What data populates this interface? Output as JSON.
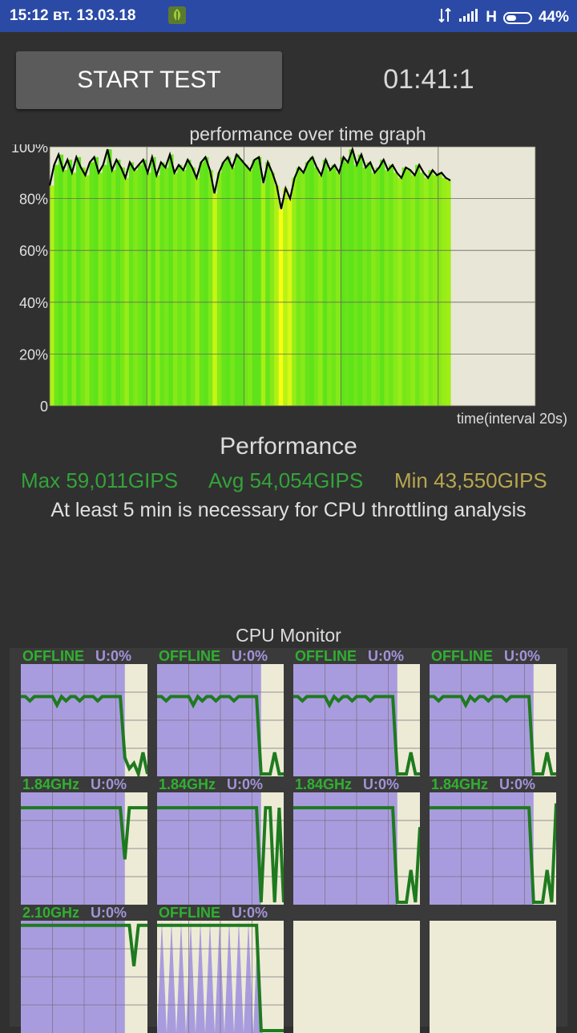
{
  "status_bar": {
    "time_date": "15:12 вт. 13.03.18",
    "network": "H",
    "battery": "44%",
    "battery_level": 0.44,
    "icons": [
      "leaf-icon",
      "data-arrows-icon",
      "signal-icon",
      "battery-icon"
    ]
  },
  "controls": {
    "start_label": "START TEST",
    "timer": "01:41:1"
  },
  "graph": {
    "title": "performance over time graph",
    "x_label": "time(interval 20s)",
    "y_ticks": [
      "100%",
      "80%",
      "60%",
      "40%",
      "20%",
      "0"
    ],
    "colors": {
      "bg": "#e8e6d6",
      "high": "#5fe31a",
      "low": "#ffff10",
      "line": "#000000"
    }
  },
  "chart_data": {
    "type": "line",
    "ylabel": "",
    "xlabel": "time(interval 20s)",
    "ylim": [
      0,
      100
    ],
    "x_interval_s": 20,
    "x_range_s": [
      0,
      100
    ],
    "series": [
      {
        "values": [
          85,
          93,
          97,
          91,
          95,
          90,
          96,
          92,
          89,
          94,
          96,
          90,
          93,
          99,
          91,
          95,
          92,
          88,
          94,
          91,
          93,
          95,
          90,
          96,
          89,
          94,
          92,
          97,
          90,
          93,
          91,
          95,
          92,
          88,
          94,
          96,
          91,
          82,
          90,
          94,
          96,
          92,
          97,
          95,
          93,
          91,
          95,
          96,
          86,
          94,
          90,
          85,
          76,
          84,
          80,
          88,
          92,
          90,
          94,
          96,
          92,
          89,
          95,
          91,
          93,
          90,
          96,
          94,
          99,
          93,
          97,
          92,
          94,
          90,
          92,
          95,
          91,
          93,
          90,
          88,
          92,
          91,
          89,
          93,
          90,
          88,
          91,
          89,
          90,
          88,
          87
        ]
      }
    ]
  },
  "performance": {
    "title": "Performance",
    "max": "Max 59,011GIPS",
    "avg": "Avg 54,054GIPS",
    "min": "Min 43,550GIPS",
    "note": "At least 5 min is necessary for CPU throttling analysis"
  },
  "cpu_monitor": {
    "title": "CPU Monitor",
    "cores": [
      {
        "freq": "OFFLINE",
        "util": "U:0%",
        "freq_level": [
          0.72,
          0.72,
          0.68,
          0.72,
          0.72,
          0.72,
          0.72,
          0.72,
          0.64,
          0.72,
          0.68,
          0.72,
          0.72,
          0.68,
          0.72,
          0.72,
          0.72,
          0.68,
          0.72,
          0.72,
          0.72,
          0.72,
          0.72,
          0.15,
          0.05,
          0.1,
          0.0,
          0.2,
          0.0
        ],
        "load": 0.7
      },
      {
        "freq": "OFFLINE",
        "util": "U:0%",
        "freq_level": [
          0.72,
          0.72,
          0.68,
          0.72,
          0.72,
          0.72,
          0.72,
          0.72,
          0.64,
          0.72,
          0.68,
          0.72,
          0.72,
          0.68,
          0.72,
          0.72,
          0.72,
          0.68,
          0.72,
          0.72,
          0.72,
          0.72,
          0.72,
          0.0,
          0.0,
          0.0,
          0.2,
          0.0,
          0.0
        ],
        "load": 0.7
      },
      {
        "freq": "OFFLINE",
        "util": "U:0%",
        "freq_level": [
          0.72,
          0.72,
          0.68,
          0.72,
          0.72,
          0.72,
          0.72,
          0.72,
          0.64,
          0.72,
          0.68,
          0.72,
          0.72,
          0.68,
          0.72,
          0.72,
          0.72,
          0.68,
          0.72,
          0.72,
          0.72,
          0.72,
          0.72,
          0.0,
          0.0,
          0.0,
          0.2,
          0.0,
          0.0
        ],
        "load": 0.7
      },
      {
        "freq": "OFFLINE",
        "util": "U:0%",
        "freq_level": [
          0.72,
          0.72,
          0.68,
          0.72,
          0.72,
          0.72,
          0.72,
          0.72,
          0.64,
          0.72,
          0.68,
          0.72,
          0.72,
          0.68,
          0.72,
          0.72,
          0.72,
          0.68,
          0.72,
          0.72,
          0.72,
          0.72,
          0.72,
          0.0,
          0.0,
          0.0,
          0.2,
          0.0,
          0.0
        ],
        "load": 0.7
      },
      {
        "freq": "1.84GHz",
        "util": "U:0%",
        "freq_level": [
          0.88,
          0.88,
          0.88,
          0.88,
          0.88,
          0.88,
          0.88,
          0.88,
          0.88,
          0.88,
          0.88,
          0.88,
          0.88,
          0.88,
          0.88,
          0.88,
          0.88,
          0.88,
          0.88,
          0.88,
          0.88,
          0.88,
          0.88,
          0.4,
          0.88,
          0.88,
          0.88,
          0.88,
          0.88
        ],
        "load": 0.7
      },
      {
        "freq": "1.84GHz",
        "util": "U:0%",
        "freq_level": [
          0.88,
          0.88,
          0.88,
          0.88,
          0.88,
          0.88,
          0.88,
          0.88,
          0.88,
          0.88,
          0.88,
          0.88,
          0.88,
          0.88,
          0.88,
          0.88,
          0.88,
          0.88,
          0.88,
          0.88,
          0.88,
          0.88,
          0.88,
          0.0,
          0.88,
          0.88,
          0.0,
          0.88,
          0.0
        ],
        "load": 0.7
      },
      {
        "freq": "1.84GHz",
        "util": "U:0%",
        "freq_level": [
          0.88,
          0.88,
          0.88,
          0.88,
          0.88,
          0.88,
          0.88,
          0.88,
          0.88,
          0.88,
          0.88,
          0.88,
          0.88,
          0.88,
          0.88,
          0.88,
          0.88,
          0.88,
          0.88,
          0.88,
          0.88,
          0.88,
          0.88,
          0.0,
          0.0,
          0.0,
          0.3,
          0.0,
          0.7
        ],
        "load": 0.7
      },
      {
        "freq": "1.84GHz",
        "util": "U:0%",
        "freq_level": [
          0.88,
          0.88,
          0.88,
          0.88,
          0.88,
          0.88,
          0.88,
          0.88,
          0.88,
          0.88,
          0.88,
          0.88,
          0.88,
          0.88,
          0.88,
          0.88,
          0.88,
          0.88,
          0.88,
          0.88,
          0.88,
          0.88,
          0.88,
          0.0,
          0.0,
          0.0,
          0.3,
          0.0,
          0.92
        ],
        "load": 0.7
      },
      {
        "freq": "2.10GHz",
        "util": "U:0%",
        "freq_level": [
          0.98,
          0.98,
          0.98,
          0.98,
          0.98,
          0.98,
          0.98,
          0.98,
          0.98,
          0.98,
          0.98,
          0.98,
          0.98,
          0.98,
          0.98,
          0.98,
          0.98,
          0.98,
          0.98,
          0.98,
          0.98,
          0.98,
          0.98,
          0.98,
          0.98,
          0.6,
          0.98,
          0.98,
          0.98
        ],
        "load": 0.85
      },
      {
        "freq": "OFFLINE",
        "util": "U:0%",
        "freq_level": [
          0.98,
          0.98,
          0.98,
          0.98,
          0.98,
          0.98,
          0.98,
          0.98,
          0.98,
          0.98,
          0.98,
          0.98,
          0.98,
          0.98,
          0.98,
          0.98,
          0.98,
          0.98,
          0.98,
          0.98,
          0.98,
          0.98,
          0.98,
          0.0,
          0.0,
          0.0,
          0.0,
          0.0,
          0.0
        ],
        "load": 0.0,
        "spiky": true
      },
      {
        "empty": true
      },
      {
        "empty": true
      }
    ],
    "colors": {
      "bg": "#edebd6",
      "load": "#a99cde",
      "freq": "#1e7a1e",
      "label_freq": "#2fb02f",
      "label_util": "#a393d9"
    }
  }
}
